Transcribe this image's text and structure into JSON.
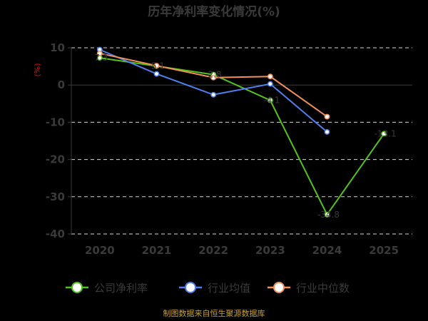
{
  "chart_data": {
    "type": "line",
    "title": "历年净利率变化情况(%)",
    "ylabel": "(%)",
    "categories": [
      "2020",
      "2021",
      "2022",
      "2023",
      "2024",
      "2025"
    ],
    "ylim": [
      -40,
      10
    ],
    "yticks": [
      "10",
      "0",
      "-10",
      "-20",
      "-30",
      "-40"
    ],
    "grid": true,
    "legend_position": "bottom",
    "series": [
      {
        "name": "公司净利率",
        "color": "#52c41a",
        "values": [
          7.3,
          5.1,
          2.8,
          -4.1,
          -34.8,
          -13.1
        ],
        "labels": [
          "7.3",
          "5.1",
          "2.8",
          "-4.1",
          "-34.8",
          "-13.1"
        ]
      },
      {
        "name": "行业均值",
        "color": "#4f7ff0",
        "values": [
          9.5,
          3.0,
          -2.6,
          0.3,
          -12.6,
          null
        ]
      },
      {
        "name": "行业中位数",
        "color": "#f28f5c",
        "values": [
          8.5,
          5.2,
          2.0,
          2.3,
          -8.5,
          null
        ]
      }
    ]
  },
  "source": "制图数据来自恒生聚源数据库"
}
